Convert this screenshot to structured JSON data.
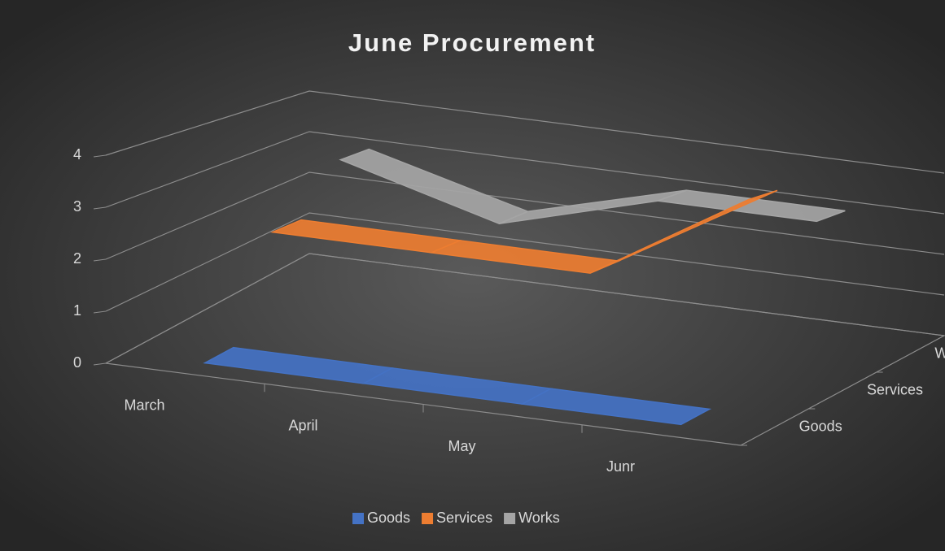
{
  "chart_data": {
    "type": "line3d",
    "title": "June Procurement",
    "categories": [
      "March",
      "April",
      "May",
      "Junr"
    ],
    "series": [
      {
        "name": "Goods",
        "color": "#4472c4",
        "values": [
          0,
          0,
          0,
          0
        ]
      },
      {
        "name": "Services",
        "color": "#ed7d31",
        "values": [
          2,
          2,
          2,
          4
        ]
      },
      {
        "name": "Works",
        "color": "#a5a5a5",
        "values": [
          3,
          2,
          3,
          3
        ]
      }
    ],
    "ylim": [
      0,
      4
    ],
    "yticks": [
      0,
      1,
      2,
      3,
      4
    ],
    "grid": true,
    "legend": "bottom"
  }
}
